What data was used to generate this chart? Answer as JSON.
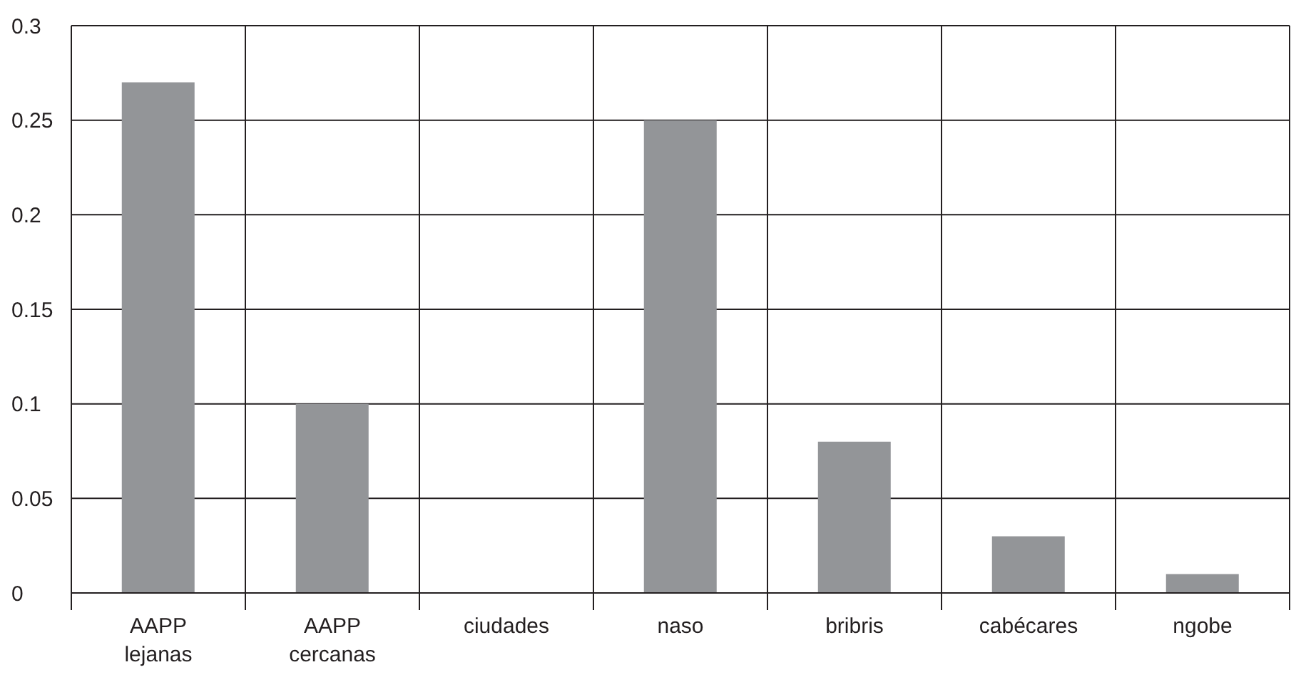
{
  "chart_data": {
    "type": "bar",
    "categories": [
      "AAPP lejanas",
      "AAPP cercanas",
      "ciudades",
      "naso",
      "bribris",
      "cabécares",
      "ngobe"
    ],
    "values": [
      0.27,
      0.1,
      0,
      0.25,
      0.08,
      0.03,
      0.01
    ],
    "color": "#939598",
    "ylim": [
      0,
      0.3
    ],
    "yticks": [
      0,
      0.05,
      0.1,
      0.15,
      0.2,
      0.25,
      0.3
    ],
    "grid": true
  }
}
